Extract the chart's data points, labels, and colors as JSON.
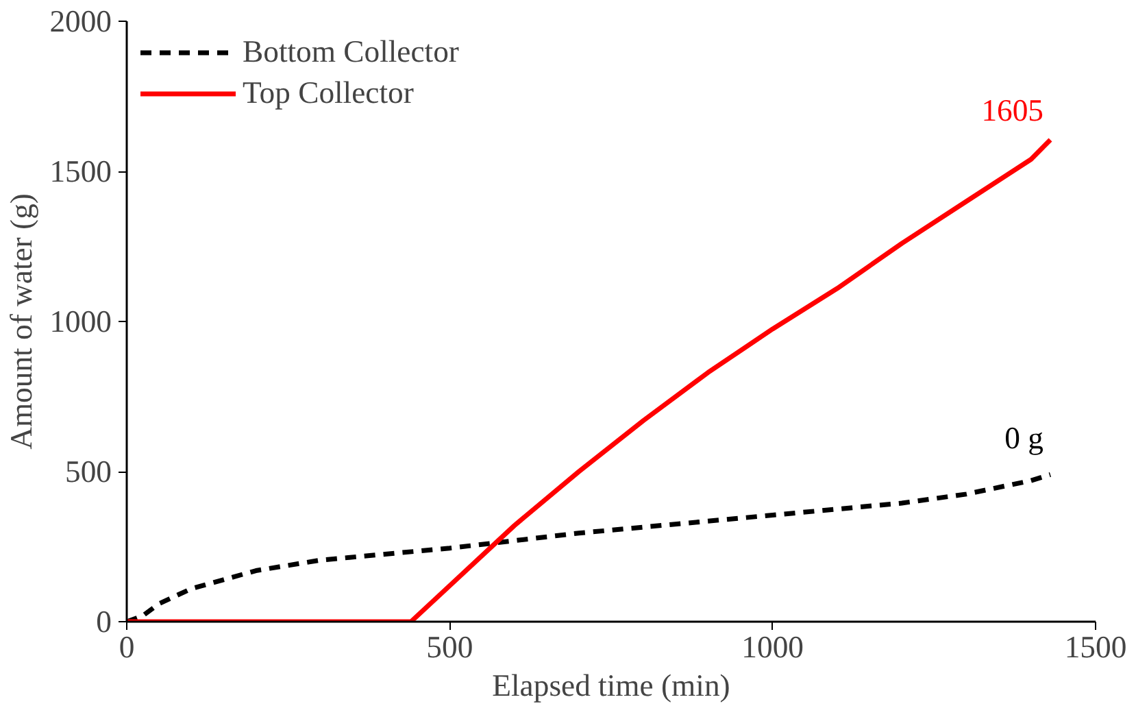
{
  "chart_data": {
    "type": "line",
    "xlabel": "Elapsed time (min)",
    "ylabel": "Amount of water (g)",
    "xlim": [
      0,
      1500
    ],
    "xticks": [
      0,
      500,
      1000,
      1500
    ],
    "ylim": [
      0,
      2000
    ],
    "yticks": [
      0,
      500,
      1000,
      1500,
      2000
    ],
    "grid": false,
    "legend": "top left",
    "marker": "none",
    "series": [
      {
        "name": "Bottom Collector",
        "color": "#000000",
        "line_style": "dashed",
        "x": [
          0,
          25,
          50,
          100,
          200,
          300,
          400,
          500,
          600,
          700,
          800,
          900,
          1000,
          1100,
          1200,
          1300,
          1400,
          1430
        ],
        "values": [
          0,
          20,
          60,
          110,
          170,
          205,
          225,
          245,
          270,
          295,
          315,
          335,
          355,
          375,
          395,
          425,
          470,
          490
        ]
      },
      {
        "name": "Top Collector",
        "color": "#ff0000",
        "line_style": "solid",
        "x": [
          0,
          440,
          500,
          570,
          600,
          700,
          800,
          900,
          1000,
          1100,
          1200,
          1300,
          1400,
          1430
        ],
        "values": [
          0,
          0,
          120,
          260,
          320,
          500,
          670,
          830,
          975,
          1110,
          1260,
          1400,
          1540,
          1605
        ]
      }
    ],
    "annotations": [
      {
        "text": "0 g",
        "x": 1430,
        "y": 490
      },
      {
        "text": "1605",
        "x": 1430,
        "y": 1605
      }
    ]
  }
}
